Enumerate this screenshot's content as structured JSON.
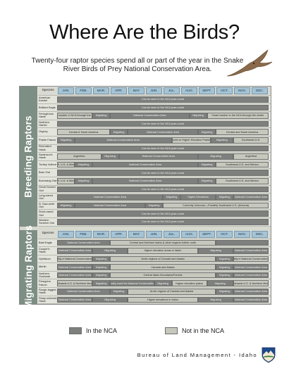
{
  "page": {
    "title": "Where Are the Birds?",
    "subtitle": "Twenty-four raptor species spend all or part of the year in the Snake River Birds of Prey National Conservation Area.",
    "footer": "Bureau of Land Management - Idaho",
    "legend": {
      "in_label": "In the NCA",
      "out_label": "Not in the NCA"
    },
    "colors": {
      "in": "#7e807d",
      "out": "#c6c8bd",
      "month": "#a5c4d6",
      "side": "#7d8e84"
    },
    "icons": [
      "flying-hawk-icon",
      "blm-logo-icon"
    ]
  },
  "header": {
    "species_label": "Species",
    "months": [
      "JAN.",
      "FEB.",
      "MAR.",
      "APR.",
      "MAY",
      "JUN.",
      "JUL.",
      "AUG.",
      "SEPT.",
      "OCT.",
      "NOV.",
      "DEC."
    ]
  },
  "sections": [
    {
      "label": "Breeding Raptors",
      "rows": [
        {
          "species": "American Kestrel",
          "bars": [
            {
              "s": 0,
              "e": 12,
              "t": "in",
              "text": "Can be seen in the NCA year-round"
            }
          ]
        },
        {
          "species": "Brilliant Eagle",
          "bars": [
            {
              "s": 0,
              "e": 12,
              "t": "in",
              "text": "Can be seen in the NCA year-round"
            }
          ]
        },
        {
          "species": "Ferruginous Hawk",
          "bars": [
            {
              "s": 0,
              "e": 2,
              "t": "out",
              "text": "Small number in NCA through the winter"
            },
            {
              "s": 2,
              "e": 3,
              "t": "in",
              "text": "Migrating"
            },
            {
              "s": 3,
              "e": 7.5,
              "t": "in",
              "text": "National Conservation Area"
            },
            {
              "s": 7.5,
              "e": 8.5,
              "t": "in",
              "text": "Migrating"
            },
            {
              "s": 8.5,
              "e": 12,
              "t": "out",
              "text": "Small number in the NCA through the winter"
            }
          ]
        },
        {
          "species": "Northern Harrier",
          "bars": [
            {
              "s": 0,
              "e": 12,
              "t": "in",
              "text": "Can be seen in the NCA year-round"
            }
          ]
        },
        {
          "species": "Osprey",
          "bars": [
            {
              "s": 0,
              "e": 3,
              "t": "out",
              "text": "Central & South America"
            },
            {
              "s": 3,
              "e": 4,
              "t": "in",
              "text": "Migrating"
            },
            {
              "s": 4,
              "e": 8,
              "t": "in",
              "text": "National Conservation Area"
            },
            {
              "s": 8,
              "e": 9,
              "t": "in",
              "text": "Migrating"
            },
            {
              "s": 9,
              "e": 12,
              "t": "out",
              "text": "Central and South America"
            }
          ]
        },
        {
          "species": "Prairie Falcon",
          "bars": [
            {
              "s": 0,
              "e": 1,
              "t": "in",
              "text": "Migrating"
            },
            {
              "s": 1,
              "e": 6.5,
              "t": "in",
              "text": "National Conservation Area"
            },
            {
              "s": 6.5,
              "e": 8.7,
              "t": "out",
              "text": "Moves to Higher Elevation Prairies"
            },
            {
              "s": 8.7,
              "e": 10,
              "t": "in",
              "text": "Migrating"
            },
            {
              "s": 10,
              "e": 12,
              "t": "out",
              "text": "Southwest U.S."
            }
          ]
        },
        {
          "species": "Red-tailed Hawk",
          "bars": [
            {
              "s": 0,
              "e": 12,
              "t": "in",
              "text": "Can be seen in the NCA year-round"
            }
          ]
        },
        {
          "species": "Swainson's Hawk",
          "bars": [
            {
              "s": 0,
              "e": 2.5,
              "t": "out",
              "text": "Argentina"
            },
            {
              "s": 2.5,
              "e": 3.5,
              "t": "in",
              "text": "Migrating"
            },
            {
              "s": 3.5,
              "e": 8,
              "t": "in",
              "text": "National Conservation Area"
            },
            {
              "s": 8,
              "e": 10,
              "t": "in",
              "text": "Migrating"
            },
            {
              "s": 10,
              "e": 12,
              "t": "out",
              "text": "Argentina"
            }
          ]
        },
        {
          "species": "Turkey Vulture",
          "bars": [
            {
              "s": 0,
              "e": 1,
              "t": "out",
              "text": "S.W. U.S. & Mexico"
            },
            {
              "s": 1,
              "e": 2,
              "t": "in",
              "text": "Migrating"
            },
            {
              "s": 2,
              "e": 8,
              "t": "in",
              "text": "National Conservation Area"
            },
            {
              "s": 8,
              "e": 9,
              "t": "in",
              "text": "Migrating"
            },
            {
              "s": 9,
              "e": 12,
              "t": "out",
              "text": "Southwest U.S. and Mexico"
            }
          ]
        },
        {
          "species": "Barn Owl",
          "bars": [
            {
              "s": 0,
              "e": 12,
              "t": "in",
              "text": "Can be seen in the NCA year-round"
            }
          ]
        },
        {
          "species": "Burrowing Owl",
          "bars": [
            {
              "s": 0,
              "e": 1,
              "t": "out",
              "text": "S.W. U.S. & Mexico"
            },
            {
              "s": 1,
              "e": 2,
              "t": "in",
              "text": "Migrating"
            },
            {
              "s": 2,
              "e": 8,
              "t": "in",
              "text": "National Conservation Area"
            },
            {
              "s": 8,
              "e": 9,
              "t": "in",
              "text": "Migrating"
            },
            {
              "s": 9,
              "e": 12,
              "t": "out",
              "text": "Southwest U.S. and Mexico"
            }
          ]
        },
        {
          "species": "Great Horned Owl",
          "bars": [
            {
              "s": 0,
              "e": 12,
              "t": "in",
              "text": "Can be seen in the NCA year-round"
            }
          ]
        },
        {
          "species": "Long-eared Owl",
          "bars": [
            {
              "s": 0,
              "e": 6,
              "t": "in",
              "text": "National Conservation Area"
            },
            {
              "s": 6,
              "e": 7,
              "t": "in",
              "text": "Migrating"
            },
            {
              "s": 7,
              "e": 9,
              "t": "in",
              "text": "Higher Elevations"
            },
            {
              "s": 9,
              "e": 10,
              "t": "in",
              "text": "Migrating"
            },
            {
              "s": 10,
              "e": 12,
              "t": "in",
              "text": "National Conservation Area"
            }
          ]
        },
        {
          "species": "N. Saw-whet Owl",
          "bars": [
            {
              "s": 0,
              "e": 1,
              "t": "in",
              "text": "Migrating"
            },
            {
              "s": 1,
              "e": 5,
              "t": "in",
              "text": "National Conservation Area"
            },
            {
              "s": 5,
              "e": 6,
              "t": "in",
              "text": "Migrating"
            },
            {
              "s": 6,
              "e": 12,
              "t": "out",
              "text": "Currently Unknown—Possibly Southwest U.S. (Arizona)"
            }
          ]
        },
        {
          "species": "Short-eared Owl",
          "bars": [
            {
              "s": 0,
              "e": 12,
              "t": "in",
              "text": "Can be seen in the NCA year-round"
            }
          ]
        },
        {
          "species": "Western Screech Owl",
          "bars": [
            {
              "s": 0,
              "e": 12,
              "t": "in",
              "text": "Can be seen in the NCA year-round"
            }
          ]
        }
      ]
    },
    {
      "label": "Migrating Raptors",
      "rows": [
        {
          "species": "Bald Eagle",
          "bars": [
            {
              "s": 0,
              "e": 3,
              "t": "in",
              "text": "National Conservation Area"
            },
            {
              "s": 3,
              "e": 9,
              "t": "out",
              "text": "Central and Northern Idaho & other regions further north"
            },
            {
              "s": 9,
              "e": 12,
              "t": "in",
              "text": ""
            }
          ]
        },
        {
          "species": "Cooper's Hawk",
          "bars": [
            {
              "s": 0,
              "e": 2,
              "t": "in",
              "text": "National Conservation Area"
            },
            {
              "s": 2,
              "e": 4,
              "t": "in",
              "text": "Migrating"
            },
            {
              "s": 4,
              "e": 8,
              "t": "out",
              "text": "Higher elevation areas in Idaho"
            },
            {
              "s": 8,
              "e": 10,
              "t": "in",
              "text": "Migrating"
            },
            {
              "s": 10,
              "e": 12,
              "t": "in",
              "text": "National Conservation Area"
            }
          ]
        },
        {
          "species": "Gyrfalcon",
          "bars": [
            {
              "s": 0,
              "e": 2,
              "t": "out",
              "text": "Possibly in National Conservation Area"
            },
            {
              "s": 2,
              "e": 3,
              "t": "in",
              "text": "Migrating"
            },
            {
              "s": 3,
              "e": 9,
              "t": "out",
              "text": "Arctic regions of Canada and Alaska"
            },
            {
              "s": 9,
              "e": 10,
              "t": "in",
              "text": "Migrating"
            },
            {
              "s": 10,
              "e": 12,
              "t": "out",
              "text": "Possibly in National Conservation Area"
            }
          ]
        },
        {
          "species": "Merlin",
          "bars": [
            {
              "s": 0,
              "e": 2,
              "t": "in",
              "text": "National Conservation Area"
            },
            {
              "s": 2,
              "e": 3,
              "t": "in",
              "text": "Migrating"
            },
            {
              "s": 3,
              "e": 9,
              "t": "out",
              "text": "Canada and Alaska"
            },
            {
              "s": 9,
              "e": 10,
              "t": "in",
              "text": "Migrating"
            },
            {
              "s": 10,
              "e": 12,
              "t": "in",
              "text": "National Conservation Area"
            }
          ]
        },
        {
          "species": "Northern Goshawk",
          "bars": [
            {
              "s": 0,
              "e": 2,
              "t": "in",
              "text": "National Conservation Area"
            },
            {
              "s": 2,
              "e": 3,
              "t": "in",
              "text": "Migrating"
            },
            {
              "s": 3,
              "e": 9,
              "t": "out",
              "text": "Central Idaho Mountains/Forests"
            },
            {
              "s": 9,
              "e": 10,
              "t": "in",
              "text": "Migrating"
            },
            {
              "s": 10,
              "e": 12,
              "t": "in",
              "text": "National Conservation Area"
            }
          ]
        },
        {
          "species": "Peregrine Falcon",
          "bars": [
            {
              "s": 0,
              "e": 2,
              "t": "out",
              "text": "Southwest U.S. & Northern Mexico"
            },
            {
              "s": 2,
              "e": 3,
              "t": "in",
              "text": "Migrating"
            },
            {
              "s": 3,
              "e": 5.5,
              "t": "in",
              "text": "Historically used the National Conservation Area"
            },
            {
              "s": 5.5,
              "e": 6.5,
              "t": "in",
              "text": "Migrating"
            },
            {
              "s": 6.5,
              "e": 8.5,
              "t": "out",
              "text": "Higher elevation plains"
            },
            {
              "s": 8.5,
              "e": 10,
              "t": "in",
              "text": "Migrating"
            },
            {
              "s": 10,
              "e": 12,
              "t": "out",
              "text": "Southwest U.S. & Northern Mexico"
            }
          ]
        },
        {
          "species": "Rough-legged Hawk",
          "bars": [
            {
              "s": 0,
              "e": 3,
              "t": "in",
              "text": "National Conservation Area"
            },
            {
              "s": 3,
              "e": 4,
              "t": "in",
              "text": "Migrating"
            },
            {
              "s": 4,
              "e": 9,
              "t": "out",
              "text": "Arctic regions of Canada and Alaska"
            },
            {
              "s": 9,
              "e": 10,
              "t": "in",
              "text": "Migrating"
            },
            {
              "s": 10,
              "e": 12,
              "t": "in",
              "text": "National Conservation Area"
            }
          ]
        },
        {
          "species": "Sharp-shinned Hawk",
          "bars": [
            {
              "s": 0,
              "e": 2,
              "t": "in",
              "text": "National Conservation Area"
            },
            {
              "s": 2,
              "e": 4,
              "t": "in",
              "text": "Migrating"
            },
            {
              "s": 4,
              "e": 8,
              "t": "out",
              "text": "Higher elevations in Idaho"
            },
            {
              "s": 8,
              "e": 10,
              "t": "in",
              "text": "Migrating"
            },
            {
              "s": 10,
              "e": 12,
              "t": "in",
              "text": "National Conservation Area"
            }
          ]
        }
      ]
    }
  ]
}
